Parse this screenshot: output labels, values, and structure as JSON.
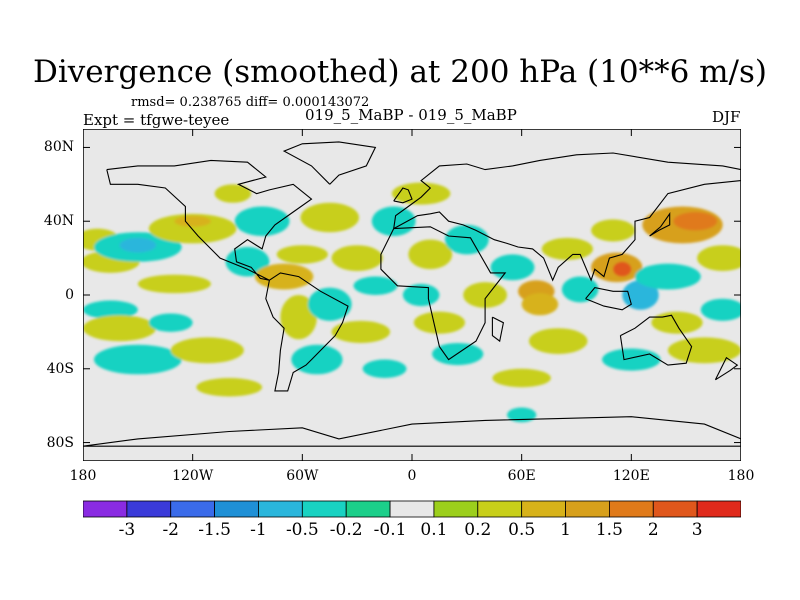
{
  "title": "Divergence (smoothed) at 200 hPa (10**6 m/s)",
  "stats": "rmsd= 0.238765 diff= 0.000143072",
  "expt": "Expt = tfgwe-teyee",
  "case": "019_5_MaBP - 019_5_MaBP",
  "season": "DJF",
  "colors": {
    "background": "#e8e8e8",
    "frame": "#000000",
    "coast": "#000000"
  },
  "chart_data": {
    "type": "heatmap",
    "title": "Divergence (smoothed) at 200 hPa (10**6 m/s)",
    "xlim": [
      -180,
      180
    ],
    "ylim": [
      -90,
      90
    ],
    "lat_ticks": [
      {
        "value": 80,
        "label": "80N"
      },
      {
        "value": 40,
        "label": "40N"
      },
      {
        "value": 0,
        "label": "0"
      },
      {
        "value": -40,
        "label": "40S"
      },
      {
        "value": -80,
        "label": "80S"
      }
    ],
    "lon_ticks": [
      {
        "value": -180,
        "label": "180"
      },
      {
        "value": -120,
        "label": "120W"
      },
      {
        "value": -60,
        "label": "60W"
      },
      {
        "value": 0,
        "label": "0"
      },
      {
        "value": 60,
        "label": "60E"
      },
      {
        "value": 120,
        "label": "120E"
      },
      {
        "value": 180,
        "label": "180"
      }
    ],
    "colorbar": {
      "colors": [
        "#8a2be2",
        "#3a3ad9",
        "#3a6bea",
        "#1f90d6",
        "#2ab6dc",
        "#19d2c2",
        "#1ccf8a",
        "#e8e8e8",
        "#9ccf1c",
        "#c8cf1a",
        "#d7b21a",
        "#d7a01c",
        "#e07a1a",
        "#e0571c",
        "#e02a1c"
      ],
      "labels": [
        "-3",
        "-2",
        "-1.5",
        "-1",
        "-0.5",
        "-0.2",
        "-0.1",
        "0.1",
        "0.2",
        "0.5",
        "1",
        "1.5",
        "2",
        "3"
      ]
    },
    "blobs": [
      {
        "lon": -172,
        "lat": 30,
        "rx": 12,
        "ry": 6,
        "level": 9
      },
      {
        "lon": -165,
        "lat": 18,
        "rx": 16,
        "ry": 6,
        "level": 9
      },
      {
        "lon": -150,
        "lat": 26,
        "rx": 24,
        "ry": 8,
        "level": 5
      },
      {
        "lon": -150,
        "lat": 27,
        "rx": 10,
        "ry": 4,
        "level": 4
      },
      {
        "lon": -120,
        "lat": 36,
        "rx": 24,
        "ry": 8,
        "level": 9
      },
      {
        "lon": -120,
        "lat": 40,
        "rx": 10,
        "ry": 3,
        "level": 10
      },
      {
        "lon": -130,
        "lat": 6,
        "rx": 20,
        "ry": 5,
        "level": 9
      },
      {
        "lon": -165,
        "lat": -8,
        "rx": 15,
        "ry": 5,
        "level": 5
      },
      {
        "lon": -160,
        "lat": -18,
        "rx": 20,
        "ry": 7,
        "level": 9
      },
      {
        "lon": -132,
        "lat": -15,
        "rx": 12,
        "ry": 5,
        "level": 5
      },
      {
        "lon": -150,
        "lat": -35,
        "rx": 24,
        "ry": 8,
        "level": 5
      },
      {
        "lon": -112,
        "lat": -30,
        "rx": 20,
        "ry": 7,
        "level": 9
      },
      {
        "lon": -90,
        "lat": 18,
        "rx": 12,
        "ry": 8,
        "level": 5
      },
      {
        "lon": -82,
        "lat": 40,
        "rx": 15,
        "ry": 8,
        "level": 5
      },
      {
        "lon": -98,
        "lat": 55,
        "rx": 10,
        "ry": 5,
        "level": 9
      },
      {
        "lon": -70,
        "lat": 10,
        "rx": 16,
        "ry": 7,
        "level": 10
      },
      {
        "lon": -60,
        "lat": 22,
        "rx": 14,
        "ry": 5,
        "level": 9
      },
      {
        "lon": -62,
        "lat": -12,
        "rx": 10,
        "ry": 12,
        "level": 9
      },
      {
        "lon": -45,
        "lat": -5,
        "rx": 12,
        "ry": 9,
        "level": 5
      },
      {
        "lon": -52,
        "lat": -35,
        "rx": 14,
        "ry": 8,
        "level": 5
      },
      {
        "lon": -45,
        "lat": 42,
        "rx": 16,
        "ry": 8,
        "level": 9
      },
      {
        "lon": -30,
        "lat": 20,
        "rx": 14,
        "ry": 7,
        "level": 9
      },
      {
        "lon": -20,
        "lat": 5,
        "rx": 12,
        "ry": 5,
        "level": 5
      },
      {
        "lon": -10,
        "lat": 40,
        "rx": 12,
        "ry": 8,
        "level": 5
      },
      {
        "lon": -28,
        "lat": -20,
        "rx": 16,
        "ry": 6,
        "level": 9
      },
      {
        "lon": -15,
        "lat": -40,
        "rx": 12,
        "ry": 5,
        "level": 5
      },
      {
        "lon": 10,
        "lat": 22,
        "rx": 12,
        "ry": 8,
        "level": 9
      },
      {
        "lon": 5,
        "lat": 0,
        "rx": 10,
        "ry": 6,
        "level": 5
      },
      {
        "lon": 15,
        "lat": -15,
        "rx": 14,
        "ry": 6,
        "level": 9
      },
      {
        "lon": 5,
        "lat": 55,
        "rx": 16,
        "ry": 6,
        "level": 9
      },
      {
        "lon": 30,
        "lat": 30,
        "rx": 12,
        "ry": 8,
        "level": 5
      },
      {
        "lon": 40,
        "lat": 0,
        "rx": 12,
        "ry": 7,
        "level": 9
      },
      {
        "lon": 25,
        "lat": -32,
        "rx": 14,
        "ry": 6,
        "level": 5
      },
      {
        "lon": 55,
        "lat": 15,
        "rx": 12,
        "ry": 7,
        "level": 5
      },
      {
        "lon": 68,
        "lat": 2,
        "rx": 10,
        "ry": 6,
        "level": 11
      },
      {
        "lon": 70,
        "lat": -5,
        "rx": 10,
        "ry": 6,
        "level": 10
      },
      {
        "lon": 85,
        "lat": 25,
        "rx": 14,
        "ry": 6,
        "level": 9
      },
      {
        "lon": 92,
        "lat": 3,
        "rx": 10,
        "ry": 7,
        "level": 5
      },
      {
        "lon": 80,
        "lat": -25,
        "rx": 16,
        "ry": 7,
        "level": 9
      },
      {
        "lon": 112,
        "lat": 15,
        "rx": 14,
        "ry": 8,
        "level": 11
      },
      {
        "lon": 115,
        "lat": 14,
        "rx": 5,
        "ry": 4,
        "level": 13
      },
      {
        "lon": 110,
        "lat": 35,
        "rx": 12,
        "ry": 6,
        "level": 9
      },
      {
        "lon": 125,
        "lat": 0,
        "rx": 10,
        "ry": 8,
        "level": 4
      },
      {
        "lon": 148,
        "lat": 38,
        "rx": 22,
        "ry": 10,
        "level": 11
      },
      {
        "lon": 155,
        "lat": 40,
        "rx": 12,
        "ry": 5,
        "level": 12
      },
      {
        "lon": 170,
        "lat": 20,
        "rx": 14,
        "ry": 7,
        "level": 9
      },
      {
        "lon": 140,
        "lat": 10,
        "rx": 18,
        "ry": 7,
        "level": 5
      },
      {
        "lon": 170,
        "lat": -8,
        "rx": 12,
        "ry": 6,
        "level": 5
      },
      {
        "lon": 145,
        "lat": -15,
        "rx": 14,
        "ry": 6,
        "level": 9
      },
      {
        "lon": 160,
        "lat": -30,
        "rx": 20,
        "ry": 7,
        "level": 9
      },
      {
        "lon": 120,
        "lat": -35,
        "rx": 16,
        "ry": 6,
        "level": 5
      },
      {
        "lon": 60,
        "lat": -45,
        "rx": 16,
        "ry": 5,
        "level": 9
      },
      {
        "lon": -100,
        "lat": -50,
        "rx": 18,
        "ry": 5,
        "level": 9
      },
      {
        "lon": 60,
        "lat": -65,
        "rx": 8,
        "ry": 4,
        "level": 5
      }
    ],
    "land_outlines": [
      [
        [
          -167,
          68
        ],
        [
          -150,
          70
        ],
        [
          -130,
          70
        ],
        [
          -110,
          73
        ],
        [
          -90,
          72
        ],
        [
          -80,
          64
        ],
        [
          -95,
          60
        ],
        [
          -85,
          55
        ],
        [
          -78,
          57
        ],
        [
          -65,
          60
        ],
        [
          -55,
          52
        ],
        [
          -65,
          45
        ],
        [
          -75,
          38
        ],
        [
          -80,
          32
        ],
        [
          -82,
          25
        ],
        [
          -90,
          30
        ],
        [
          -97,
          25
        ],
        [
          -96,
          18
        ],
        [
          -88,
          15
        ],
        [
          -83,
          9
        ],
        [
          -78,
          8
        ],
        [
          -90,
          14
        ],
        [
          -105,
          20
        ],
        [
          -110,
          25
        ],
        [
          -117,
          32
        ],
        [
          -124,
          40
        ],
        [
          -124,
          48
        ],
        [
          -135,
          58
        ],
        [
          -150,
          60
        ],
        [
          -165,
          60
        ],
        [
          -167,
          68
        ]
      ],
      [
        [
          -78,
          8
        ],
        [
          -72,
          12
        ],
        [
          -62,
          10
        ],
        [
          -50,
          2
        ],
        [
          -35,
          -6
        ],
        [
          -38,
          -15
        ],
        [
          -42,
          -22
        ],
        [
          -48,
          -28
        ],
        [
          -55,
          -35
        ],
        [
          -58,
          -38
        ],
        [
          -65,
          -42
        ],
        [
          -68,
          -52
        ],
        [
          -75,
          -52
        ],
        [
          -73,
          -42
        ],
        [
          -72,
          -30
        ],
        [
          -70,
          -18
        ],
        [
          -76,
          -12
        ],
        [
          -80,
          -2
        ],
        [
          -78,
          8
        ]
      ],
      [
        [
          -10,
          36
        ],
        [
          10,
          37
        ],
        [
          20,
          32
        ],
        [
          32,
          31
        ],
        [
          43,
          12
        ],
        [
          51,
          12
        ],
        [
          40,
          -2
        ],
        [
          40,
          -15
        ],
        [
          35,
          -25
        ],
        [
          20,
          -35
        ],
        [
          15,
          -28
        ],
        [
          12,
          -15
        ],
        [
          9,
          -2
        ],
        [
          9,
          4
        ],
        [
          -8,
          5
        ],
        [
          -17,
          14
        ],
        [
          -17,
          22
        ],
        [
          -10,
          36
        ]
      ],
      [
        [
          -10,
          36
        ],
        [
          -9,
          43
        ],
        [
          -2,
          48
        ],
        [
          5,
          53
        ],
        [
          10,
          58
        ],
        [
          5,
          62
        ],
        [
          15,
          70
        ],
        [
          30,
          71
        ],
        [
          40,
          68
        ],
        [
          55,
          70
        ],
        [
          70,
          73
        ],
        [
          90,
          76
        ],
        [
          110,
          77
        ],
        [
          140,
          72
        ],
        [
          170,
          70
        ],
        [
          180,
          68
        ],
        [
          180,
          62
        ],
        [
          160,
          60
        ],
        [
          140,
          55
        ],
        [
          130,
          42
        ],
        [
          122,
          40
        ],
        [
          122,
          30
        ],
        [
          115,
          22
        ],
        [
          108,
          20
        ],
        [
          105,
          10
        ],
        [
          100,
          14
        ],
        [
          98,
          8
        ],
        [
          92,
          22
        ],
        [
          88,
          22
        ],
        [
          80,
          15
        ],
        [
          77,
          8
        ],
        [
          72,
          20
        ],
        [
          66,
          25
        ],
        [
          58,
          26
        ],
        [
          52,
          28
        ],
        [
          45,
          30
        ],
        [
          35,
          35
        ],
        [
          28,
          38
        ],
        [
          20,
          40
        ],
        [
          15,
          45
        ],
        [
          10,
          44
        ],
        [
          3,
          43
        ],
        [
          -10,
          36
        ]
      ],
      [
        [
          114,
          -22
        ],
        [
          122,
          -18
        ],
        [
          130,
          -12
        ],
        [
          137,
          -12
        ],
        [
          142,
          -11
        ],
        [
          146,
          -18
        ],
        [
          153,
          -28
        ],
        [
          150,
          -37
        ],
        [
          140,
          -38
        ],
        [
          130,
          -32
        ],
        [
          116,
          -35
        ],
        [
          114,
          -22
        ]
      ],
      [
        [
          -180,
          -82
        ],
        [
          -150,
          -78
        ],
        [
          -100,
          -74
        ],
        [
          -60,
          -72
        ],
        [
          -40,
          -78
        ],
        [
          0,
          -70
        ],
        [
          40,
          -68
        ],
        [
          80,
          -67
        ],
        [
          120,
          -66
        ],
        [
          160,
          -70
        ],
        [
          180,
          -78
        ],
        [
          180,
          -82
        ],
        [
          -180,
          -82
        ]
      ],
      [
        [
          -45,
          60
        ],
        [
          -40,
          65
        ],
        [
          -25,
          70
        ],
        [
          -20,
          80
        ],
        [
          -40,
          83
        ],
        [
          -60,
          82
        ],
        [
          -70,
          78
        ],
        [
          -55,
          70
        ],
        [
          -45,
          60
        ]
      ],
      [
        [
          95,
          -2
        ],
        [
          105,
          -6
        ],
        [
          115,
          -8
        ],
        [
          120,
          -5
        ],
        [
          118,
          2
        ],
        [
          110,
          2
        ],
        [
          100,
          4
        ],
        [
          95,
          -2
        ]
      ],
      [
        [
          130,
          32
        ],
        [
          135,
          35
        ],
        [
          141,
          38
        ],
        [
          141,
          44
        ],
        [
          136,
          37
        ],
        [
          130,
          32
        ]
      ],
      [
        [
          44,
          -12
        ],
        [
          50,
          -15
        ],
        [
          48,
          -25
        ],
        [
          44,
          -22
        ],
        [
          44,
          -12
        ]
      ],
      [
        [
          -10,
          51
        ],
        [
          -5,
          50
        ],
        [
          0,
          52
        ],
        [
          -2,
          57
        ],
        [
          -5,
          58
        ],
        [
          -10,
          51
        ]
      ],
      [
        [
          166,
          -46
        ],
        [
          174,
          -41
        ],
        [
          178,
          -38
        ],
        [
          172,
          -34
        ],
        [
          166,
          -46
        ]
      ]
    ]
  }
}
